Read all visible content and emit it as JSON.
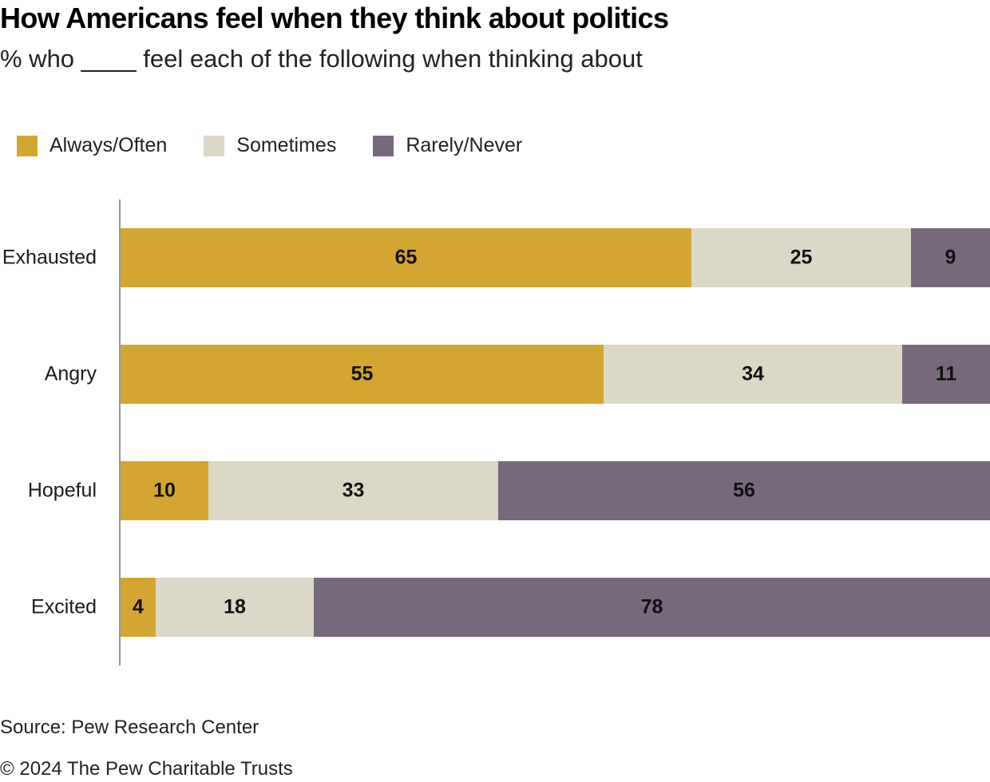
{
  "title": "How Americans feel when they think about politics",
  "subtitle": "% who ____ feel each of the following when thinking about",
  "source": "Source: Pew Research Center",
  "copyright": "© 2024 The Pew Charitable Trusts",
  "colors": {
    "always_often": "#d2a631",
    "sometimes": "#dcd8c8",
    "rarely_never": "#776a7d",
    "axis": "#999999",
    "label_text": "#1a1a1a"
  },
  "chart_data": {
    "type": "bar",
    "orientation": "horizontal",
    "stacked": true,
    "title": "How Americans feel when they think about politics",
    "subtitle": "% who ____ feel each of the following when thinking about",
    "categories": [
      "Exhausted",
      "Angry",
      "Hopeful",
      "Excited"
    ],
    "series": [
      {
        "name": "Always/Often",
        "color": "#d2a631",
        "values": [
          65,
          55,
          10,
          4
        ]
      },
      {
        "name": "Sometimes",
        "color": "#dcd8c8",
        "values": [
          25,
          34,
          33,
          18
        ]
      },
      {
        "name": "Rarely/Never",
        "color": "#776a7d",
        "values": [
          9,
          11,
          56,
          78
        ]
      }
    ],
    "xlim": [
      0,
      100
    ],
    "legend_position": "top-left",
    "grid": false,
    "data_labels": true
  }
}
